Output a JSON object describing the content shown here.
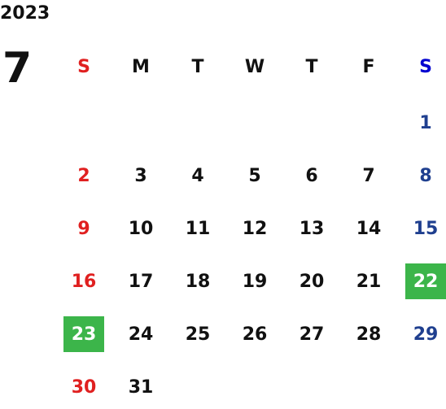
{
  "year": "2023",
  "month": "7",
  "weekdays": [
    "S",
    "M",
    "T",
    "W",
    "T",
    "F",
    "S"
  ],
  "weeks": [
    [
      null,
      null,
      null,
      null,
      null,
      null,
      "1"
    ],
    [
      "2",
      "3",
      "4",
      "5",
      "6",
      "7",
      "8"
    ],
    [
      "9",
      "10",
      "11",
      "12",
      "13",
      "14",
      "15"
    ],
    [
      "16",
      "17",
      "18",
      "19",
      "20",
      "21",
      "22"
    ],
    [
      "23",
      "24",
      "25",
      "26",
      "27",
      "28",
      "29"
    ],
    [
      "30",
      "31",
      null,
      null,
      null,
      null,
      null
    ]
  ],
  "highlighted": [
    "22",
    "23"
  ]
}
